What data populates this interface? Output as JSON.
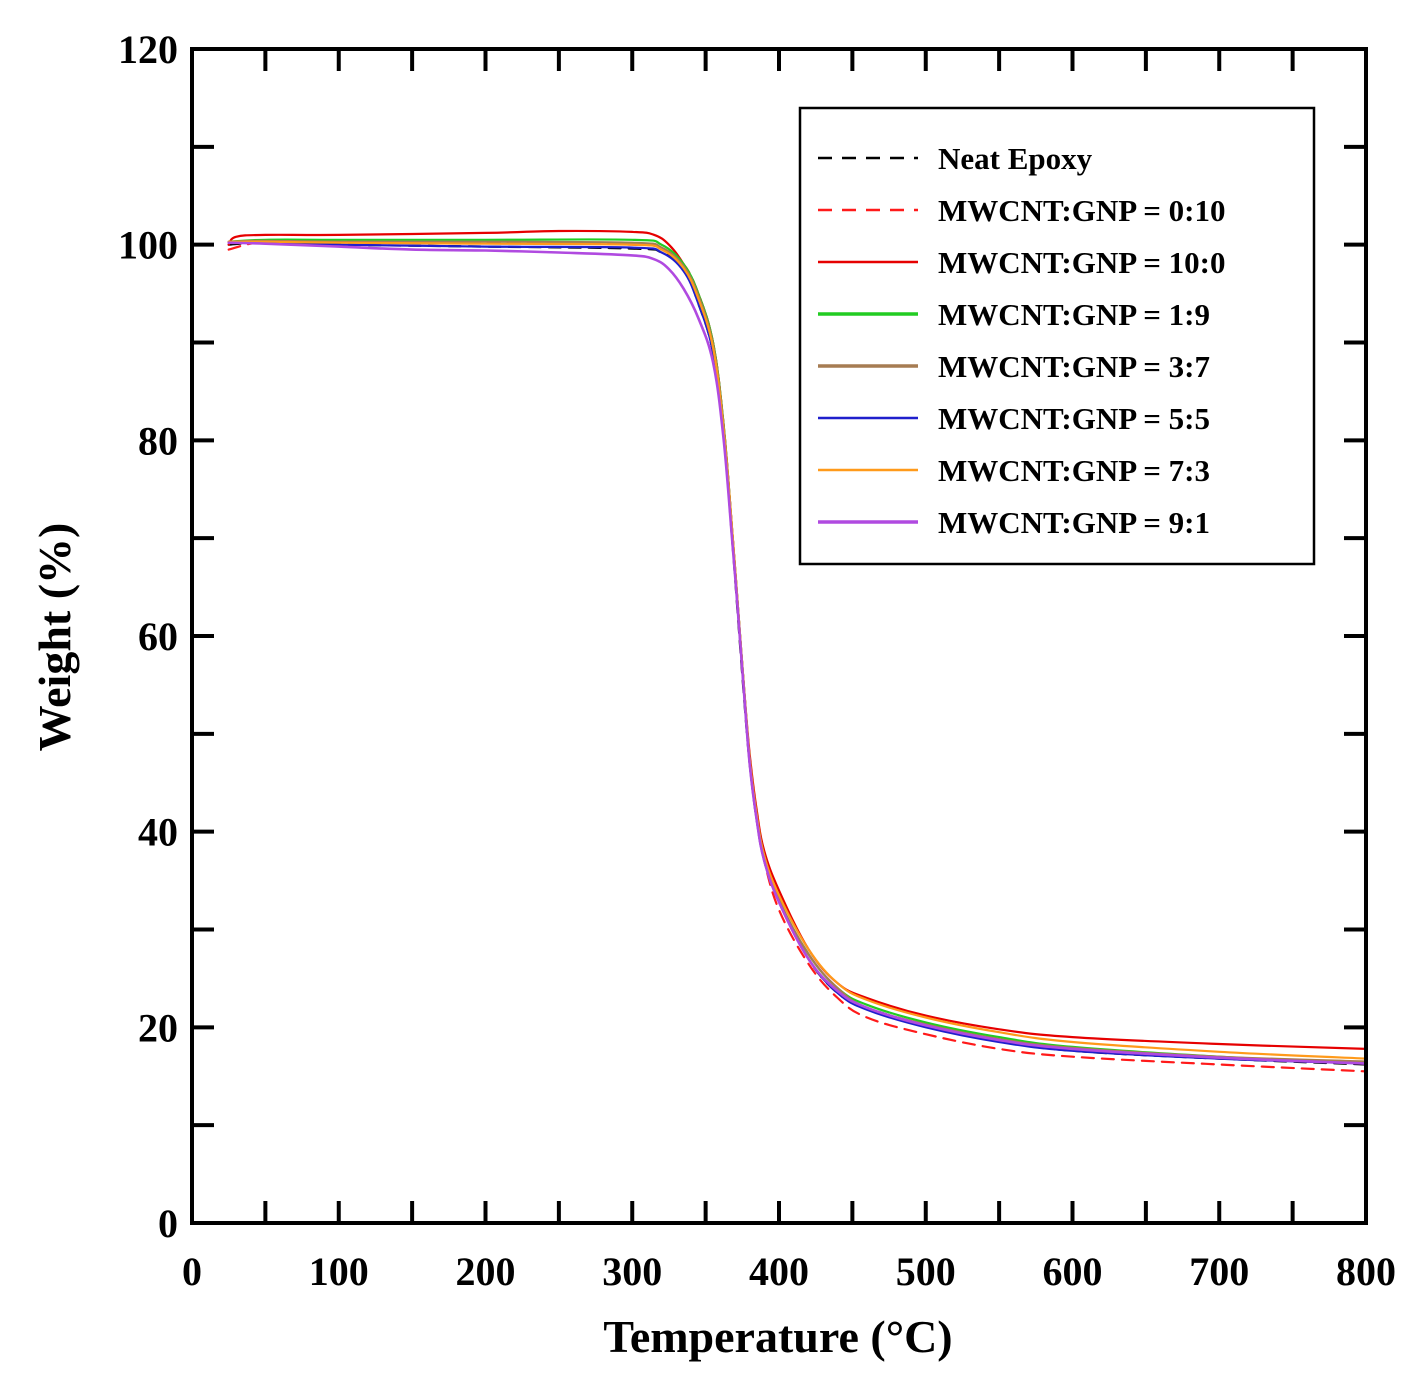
{
  "chart_data": {
    "type": "line",
    "title": "",
    "xlabel": "Temperature (°C)",
    "ylabel": "Weight (%)",
    "xlim": [
      0,
      800
    ],
    "ylim": [
      0,
      120
    ],
    "xticks": [
      0,
      100,
      200,
      300,
      400,
      500,
      600,
      700,
      800
    ],
    "yticks": [
      0,
      20,
      40,
      60,
      80,
      100,
      120
    ],
    "grid": false,
    "legend_position": "top-right",
    "series": [
      {
        "name": "Neat Epoxy",
        "color": "#000000",
        "dashed": true,
        "x": [
          25,
          50,
          100,
          200,
          300,
          320,
          335,
          345,
          355,
          362,
          368,
          372,
          376,
          380,
          385,
          390,
          400,
          420,
          440,
          460,
          500,
          550,
          600,
          700,
          800
        ],
        "y": [
          100.0,
          100.2,
          100.0,
          99.8,
          99.6,
          99.2,
          97.5,
          94.0,
          89.0,
          81.0,
          70.0,
          62.0,
          54.0,
          47.0,
          41.0,
          37.5,
          33.0,
          27.0,
          23.5,
          22.0,
          20.2,
          18.6,
          17.6,
          16.8,
          16.2
        ]
      },
      {
        "name": "MWCNT:GNP = 0:10",
        "color": "#ff1a1a",
        "dashed": true,
        "x": [
          25,
          50,
          100,
          200,
          300,
          320,
          335,
          345,
          355,
          362,
          368,
          372,
          376,
          380,
          385,
          390,
          400,
          420,
          440,
          460,
          500,
          550,
          600,
          700,
          800
        ],
        "y": [
          99.5,
          100.3,
          100.3,
          100.2,
          100.0,
          99.6,
          98.0,
          95.0,
          90.0,
          82.0,
          71.0,
          63.0,
          55.0,
          47.5,
          41.0,
          37.0,
          32.0,
          26.5,
          23.0,
          21.0,
          19.3,
          17.8,
          17.0,
          16.2,
          15.5
        ]
      },
      {
        "name": "MWCNT:GNP = 10:0",
        "color": "#e60000",
        "dashed": false,
        "x": [
          25,
          30,
          50,
          100,
          200,
          250,
          300,
          315,
          325,
          335,
          345,
          355,
          362,
          368,
          372,
          376,
          380,
          385,
          390,
          400,
          420,
          440,
          460,
          500,
          550,
          600,
          700,
          800
        ],
        "y": [
          100.0,
          100.8,
          101.0,
          101.0,
          101.2,
          101.4,
          101.3,
          101.0,
          100.0,
          98.0,
          95.0,
          90.0,
          82.0,
          71.0,
          63.0,
          55.0,
          48.0,
          42.0,
          38.0,
          34.0,
          28.0,
          24.5,
          23.0,
          21.2,
          19.8,
          19.0,
          18.3,
          17.8
        ]
      },
      {
        "name": "MWCNT:GNP = 1:9",
        "color": "#22cc22",
        "dashed": false,
        "x": [
          25,
          50,
          100,
          200,
          300,
          320,
          335,
          345,
          355,
          362,
          368,
          372,
          376,
          380,
          385,
          390,
          400,
          420,
          440,
          460,
          500,
          550,
          600,
          700,
          800
        ],
        "y": [
          100.3,
          100.5,
          100.5,
          100.5,
          100.5,
          100.0,
          98.0,
          95.0,
          90.0,
          82.0,
          71.0,
          63.0,
          55.0,
          47.5,
          41.5,
          37.5,
          33.0,
          27.5,
          24.0,
          22.3,
          20.5,
          19.0,
          18.0,
          17.0,
          16.3
        ]
      },
      {
        "name": "MWCNT:GNP = 3:7",
        "color": "#a67c52",
        "dashed": false,
        "x": [
          25,
          50,
          100,
          200,
          300,
          320,
          335,
          345,
          355,
          362,
          368,
          372,
          376,
          380,
          385,
          390,
          400,
          420,
          440,
          460,
          500,
          550,
          600,
          700,
          800
        ],
        "y": [
          100.3,
          100.4,
          100.3,
          100.3,
          100.2,
          99.7,
          97.8,
          94.8,
          89.8,
          81.8,
          71.0,
          63.0,
          55.0,
          47.5,
          41.5,
          37.5,
          33.0,
          27.5,
          24.0,
          22.0,
          20.3,
          18.8,
          17.9,
          17.0,
          16.5
        ]
      },
      {
        "name": "MWCNT:GNP = 5:5",
        "color": "#1f1fcc",
        "dashed": false,
        "x": [
          25,
          50,
          100,
          200,
          300,
          320,
          335,
          345,
          355,
          362,
          368,
          372,
          376,
          380,
          385,
          390,
          400,
          420,
          440,
          460,
          500,
          550,
          600,
          700,
          800
        ],
        "y": [
          100.2,
          100.2,
          100.0,
          99.8,
          99.7,
          99.2,
          97.3,
          94.0,
          89.0,
          81.0,
          70.5,
          62.5,
          54.5,
          47.0,
          41.0,
          37.0,
          32.8,
          27.0,
          23.5,
          21.8,
          20.0,
          18.5,
          17.6,
          16.8,
          16.3
        ]
      },
      {
        "name": "MWCNT:GNP = 7:3",
        "color": "#ff9a1a",
        "dashed": false,
        "x": [
          25,
          50,
          100,
          200,
          300,
          320,
          335,
          345,
          355,
          362,
          368,
          372,
          376,
          380,
          385,
          390,
          400,
          420,
          440,
          460,
          500,
          550,
          600,
          700,
          800
        ],
        "y": [
          100.3,
          100.3,
          100.2,
          100.1,
          100.0,
          99.5,
          97.6,
          94.5,
          89.5,
          81.5,
          71.0,
          63.0,
          55.0,
          47.5,
          41.5,
          37.5,
          33.5,
          28.0,
          24.5,
          22.8,
          21.0,
          19.5,
          18.5,
          17.5,
          16.8
        ]
      },
      {
        "name": "MWCNT:GNP = 9:1",
        "color": "#b04ae0",
        "dashed": false,
        "x": [
          25,
          50,
          100,
          150,
          200,
          250,
          300,
          315,
          325,
          335,
          345,
          355,
          362,
          368,
          372,
          376,
          380,
          385,
          390,
          400,
          420,
          440,
          460,
          500,
          550,
          600,
          700,
          800
        ],
        "y": [
          100.2,
          100.1,
          99.8,
          99.5,
          99.4,
          99.2,
          98.9,
          98.5,
          97.5,
          95.5,
          92.5,
          88.0,
          80.5,
          70.0,
          62.5,
          54.5,
          47.0,
          41.0,
          37.0,
          32.8,
          27.0,
          23.7,
          22.0,
          20.2,
          18.7,
          17.8,
          16.9,
          16.3
        ]
      }
    ]
  }
}
